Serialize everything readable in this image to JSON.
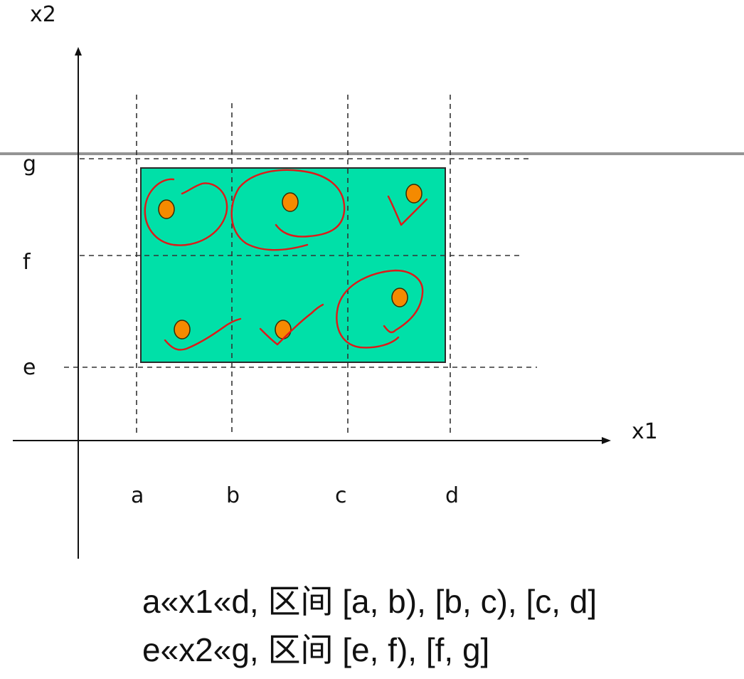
{
  "axes": {
    "x_label": "x1",
    "y_label": "x2"
  },
  "x_ticks": [
    "a",
    "b",
    "c",
    "d"
  ],
  "y_ticks": [
    "g",
    "f",
    "e"
  ],
  "captions": [
    "a«x1«d, 区间 [a, b), [b, c), [c, d]",
    "e«x2«g, 区间 [e, f), [f, g]"
  ],
  "colors": {
    "region_fill": "#00e0a8",
    "point_fill": "#f58a00",
    "annotation_ink": "#e01818"
  },
  "points": [
    {
      "cell": "[a, b) x [f, g]",
      "mark": "circle"
    },
    {
      "cell": "[b, c) x [f, g]",
      "mark": "circle"
    },
    {
      "cell": "[c, d] x [f, g]",
      "mark": "check"
    },
    {
      "cell": "[a, b) x [e, f)",
      "mark": "check"
    },
    {
      "cell": "[b, c) x [e, f)",
      "mark": "check"
    },
    {
      "cell": "[c, d] x [e, f)",
      "mark": "circle"
    }
  ]
}
